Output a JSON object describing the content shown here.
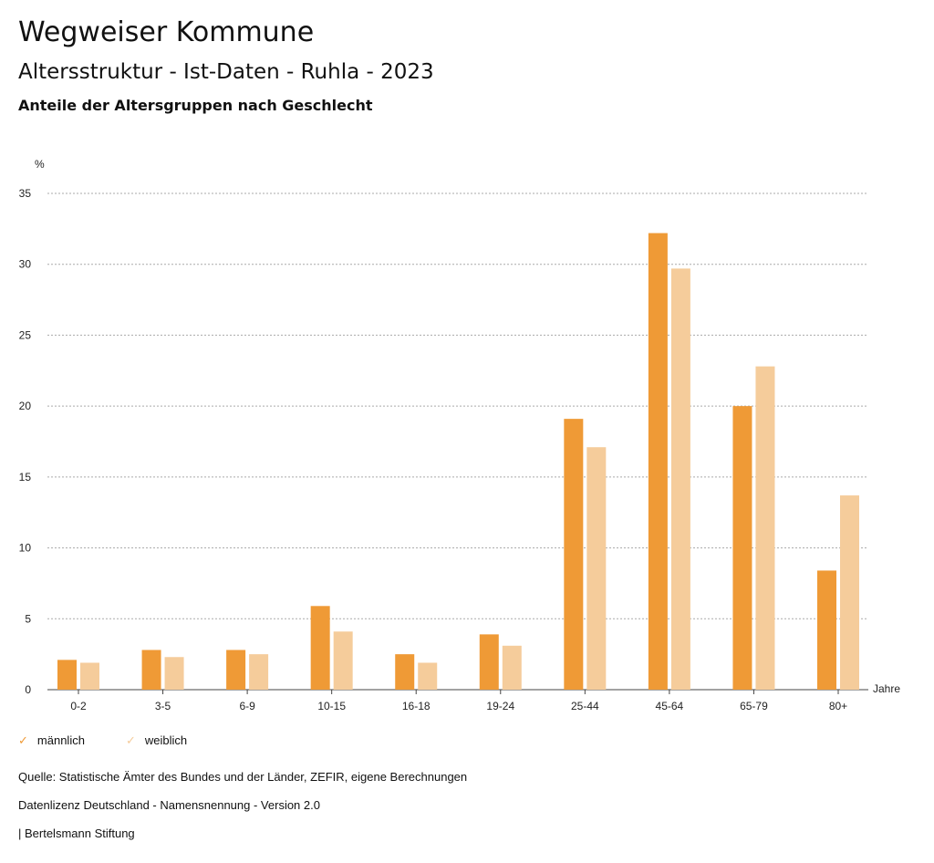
{
  "header": {
    "title": "Wegweiser Kommune",
    "subtitle": "Altersstruktur - Ist-Daten - Ruhla - 2023",
    "chart_title": "Anteile der Altersgruppen nach Geschlecht"
  },
  "chart_data": {
    "type": "bar",
    "title": "Anteile der Altersgruppen nach Geschlecht",
    "xlabel": "Jahre",
    "ylabel": "%",
    "ylim": [
      0,
      35
    ],
    "yticks": [
      0,
      5,
      10,
      15,
      20,
      25,
      30,
      35
    ],
    "grid": true,
    "legend": "bottom-left",
    "categories": [
      "0-2",
      "3-5",
      "6-9",
      "10-15",
      "16-18",
      "19-24",
      "25-44",
      "45-64",
      "65-79",
      "80+"
    ],
    "series": [
      {
        "name": "männlich",
        "color": "#ef9a36",
        "values": [
          2.1,
          2.8,
          2.8,
          5.9,
          2.5,
          3.9,
          19.1,
          32.2,
          20.0,
          8.4
        ]
      },
      {
        "name": "weiblich",
        "color": "#f5cc9b",
        "values": [
          1.9,
          2.3,
          2.5,
          4.1,
          1.9,
          3.1,
          17.1,
          29.7,
          22.8,
          13.7
        ]
      }
    ]
  },
  "footer": {
    "source": "Quelle: Statistische Ämter des Bundes und der Länder, ZEFIR, eigene Berechnungen",
    "license": "Datenlizenz Deutschland - Namensnennung - Version 2.0",
    "brand": "| Bertelsmann Stiftung"
  }
}
